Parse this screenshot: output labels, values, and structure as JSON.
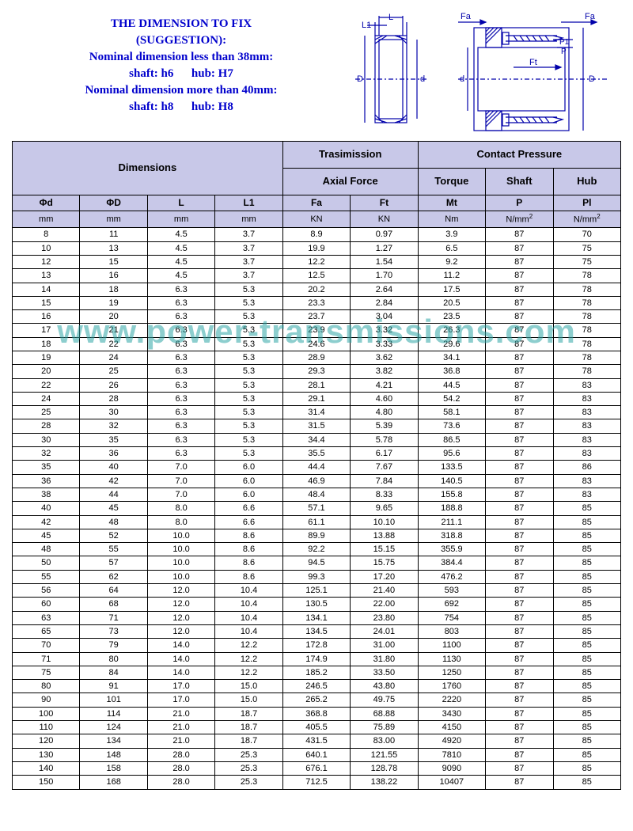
{
  "suggestion": {
    "line1": "THE DIMENSION TO FIX",
    "line2": "(SUGGESTION):",
    "line3": "Nominal dimension less than 38mm:",
    "line4_a": "shaft: h6",
    "line4_b": "hub: H7",
    "line5": "Nominal dimension more than 40mm:",
    "line6_a": "shaft: h8",
    "line6_b": "hub: H8",
    "color": "#0000cc",
    "fontsize": 15
  },
  "diagram": {
    "labels": {
      "L": "L",
      "L1": "L1",
      "D": "D",
      "d": "d",
      "Fa": "Fa",
      "Ft": "Ft",
      "P": "P",
      "P1": "P1"
    },
    "stroke": "#0000aa"
  },
  "watermark": {
    "text": "www.power-transmissions.com",
    "color": "rgba(47,166,166,0.55)",
    "fontsize": 42
  },
  "table": {
    "header_bg": "#c8c8e8",
    "border_color": "#000000",
    "group_headers": {
      "dimensions": "Dimensions",
      "transmission": "Trasimission",
      "axial_force": "Axial Force",
      "contact_pressure": "Contact Pressure",
      "torque": "Torque",
      "shaft": "Shaft",
      "hub": "Hub"
    },
    "columns": [
      {
        "sym": "Φd",
        "unit": "mm"
      },
      {
        "sym": "ΦD",
        "unit": "mm"
      },
      {
        "sym": "L",
        "unit": "mm"
      },
      {
        "sym": "L1",
        "unit": "mm"
      },
      {
        "sym": "Fa",
        "unit": "KN"
      },
      {
        "sym": "Ft",
        "unit": "KN"
      },
      {
        "sym": "Mt",
        "unit": "Nm"
      },
      {
        "sym": "P",
        "unit": "N/mm²"
      },
      {
        "sym": "Pl",
        "unit": "N/mm²"
      }
    ],
    "rows": [
      [
        "8",
        "11",
        "4.5",
        "3.7",
        "8.9",
        "0.97",
        "3.9",
        "87",
        "70"
      ],
      [
        "10",
        "13",
        "4.5",
        "3.7",
        "19.9",
        "1.27",
        "6.5",
        "87",
        "75"
      ],
      [
        "12",
        "15",
        "4.5",
        "3.7",
        "12.2",
        "1.54",
        "9.2",
        "87",
        "75"
      ],
      [
        "13",
        "16",
        "4.5",
        "3.7",
        "12.5",
        "1.70",
        "11.2",
        "87",
        "78"
      ],
      [
        "14",
        "18",
        "6.3",
        "5.3",
        "20.2",
        "2.64",
        "17.5",
        "87",
        "78"
      ],
      [
        "15",
        "19",
        "6.3",
        "5.3",
        "23.3",
        "2.84",
        "20.5",
        "87",
        "78"
      ],
      [
        "16",
        "20",
        "6.3",
        "5.3",
        "23.7",
        "3.04",
        "23.5",
        "87",
        "78"
      ],
      [
        "17",
        "21",
        "6.3",
        "5.3",
        "23.9",
        "3.32",
        "26.3",
        "87",
        "78"
      ],
      [
        "18",
        "22",
        "6.3",
        "5.3",
        "24.6",
        "3.33",
        "29.6",
        "87",
        "78"
      ],
      [
        "19",
        "24",
        "6.3",
        "5.3",
        "28.9",
        "3.62",
        "34.1",
        "87",
        "78"
      ],
      [
        "20",
        "25",
        "6.3",
        "5.3",
        "29.3",
        "3.82",
        "36.8",
        "87",
        "78"
      ],
      [
        "22",
        "26",
        "6.3",
        "5.3",
        "28.1",
        "4.21",
        "44.5",
        "87",
        "83"
      ],
      [
        "24",
        "28",
        "6.3",
        "5.3",
        "29.1",
        "4.60",
        "54.2",
        "87",
        "83"
      ],
      [
        "25",
        "30",
        "6.3",
        "5.3",
        "31.4",
        "4.80",
        "58.1",
        "87",
        "83"
      ],
      [
        "28",
        "32",
        "6.3",
        "5.3",
        "31.5",
        "5.39",
        "73.6",
        "87",
        "83"
      ],
      [
        "30",
        "35",
        "6.3",
        "5.3",
        "34.4",
        "5.78",
        "86.5",
        "87",
        "83"
      ],
      [
        "32",
        "36",
        "6.3",
        "5.3",
        "35.5",
        "6.17",
        "95.6",
        "87",
        "83"
      ],
      [
        "35",
        "40",
        "7.0",
        "6.0",
        "44.4",
        "7.67",
        "133.5",
        "87",
        "86"
      ],
      [
        "36",
        "42",
        "7.0",
        "6.0",
        "46.9",
        "7.84",
        "140.5",
        "87",
        "83"
      ],
      [
        "38",
        "44",
        "7.0",
        "6.0",
        "48.4",
        "8.33",
        "155.8",
        "87",
        "83"
      ],
      [
        "40",
        "45",
        "8.0",
        "6.6",
        "57.1",
        "9.65",
        "188.8",
        "87",
        "85"
      ],
      [
        "42",
        "48",
        "8.0",
        "6.6",
        "61.1",
        "10.10",
        "211.1",
        "87",
        "85"
      ],
      [
        "45",
        "52",
        "10.0",
        "8.6",
        "89.9",
        "13.88",
        "318.8",
        "87",
        "85"
      ],
      [
        "48",
        "55",
        "10.0",
        "8.6",
        "92.2",
        "15.15",
        "355.9",
        "87",
        "85"
      ],
      [
        "50",
        "57",
        "10.0",
        "8.6",
        "94.5",
        "15.75",
        "384.4",
        "87",
        "85"
      ],
      [
        "55",
        "62",
        "10.0",
        "8.6",
        "99.3",
        "17.20",
        "476.2",
        "87",
        "85"
      ],
      [
        "56",
        "64",
        "12.0",
        "10.4",
        "125.1",
        "21.40",
        "593",
        "87",
        "85"
      ],
      [
        "60",
        "68",
        "12.0",
        "10.4",
        "130.5",
        "22.00",
        "692",
        "87",
        "85"
      ],
      [
        "63",
        "71",
        "12.0",
        "10.4",
        "134.1",
        "23.80",
        "754",
        "87",
        "85"
      ],
      [
        "65",
        "73",
        "12.0",
        "10.4",
        "134.5",
        "24.01",
        "803",
        "87",
        "85"
      ],
      [
        "70",
        "79",
        "14.0",
        "12.2",
        "172.8",
        "31.00",
        "1100",
        "87",
        "85"
      ],
      [
        "71",
        "80",
        "14.0",
        "12.2",
        "174.9",
        "31.80",
        "1130",
        "87",
        "85"
      ],
      [
        "75",
        "84",
        "14.0",
        "12.2",
        "185.2",
        "33.50",
        "1250",
        "87",
        "85"
      ],
      [
        "80",
        "91",
        "17.0",
        "15.0",
        "246.5",
        "43.80",
        "1760",
        "87",
        "85"
      ],
      [
        "90",
        "101",
        "17.0",
        "15.0",
        "265.2",
        "49.75",
        "2220",
        "87",
        "85"
      ],
      [
        "100",
        "114",
        "21.0",
        "18.7",
        "368.8",
        "68.88",
        "3430",
        "87",
        "85"
      ],
      [
        "110",
        "124",
        "21.0",
        "18.7",
        "405.5",
        "75.89",
        "4150",
        "87",
        "85"
      ],
      [
        "120",
        "134",
        "21.0",
        "18.7",
        "431.5",
        "83.00",
        "4920",
        "87",
        "85"
      ],
      [
        "130",
        "148",
        "28.0",
        "25.3",
        "640.1",
        "121.55",
        "7810",
        "87",
        "85"
      ],
      [
        "140",
        "158",
        "28.0",
        "25.3",
        "676.1",
        "128.78",
        "9090",
        "87",
        "85"
      ],
      [
        "150",
        "168",
        "28.0",
        "25.3",
        "712.5",
        "138.22",
        "10407",
        "87",
        "85"
      ]
    ]
  }
}
